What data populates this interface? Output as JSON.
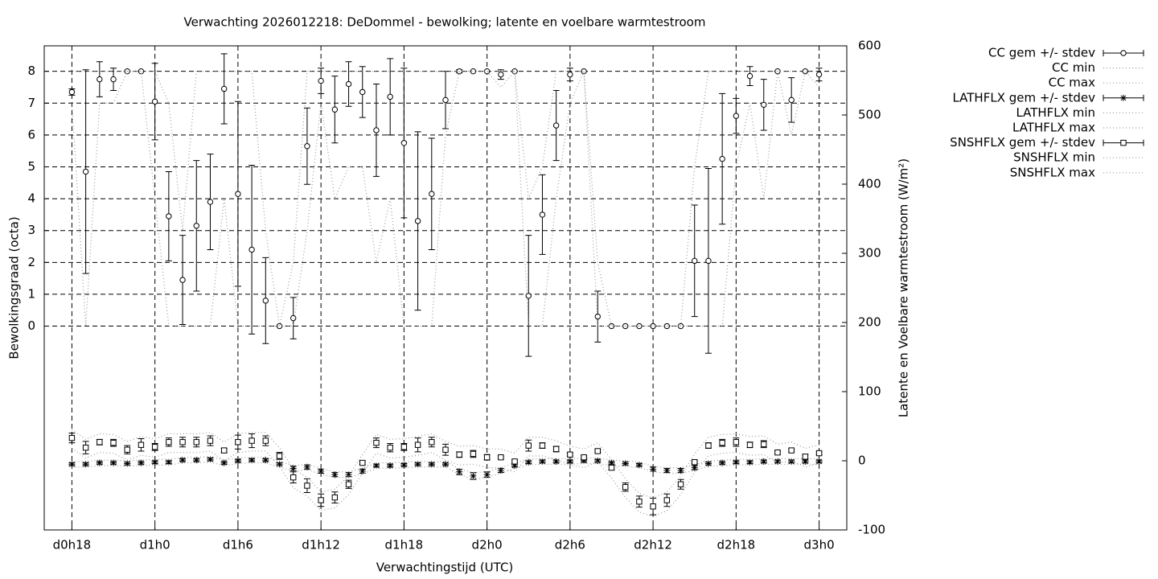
{
  "chart_data": {
    "type": "errorbar",
    "title": "Verwachting 2026012218: DeDommel - bewolking; latente en voelbare warmtestroom",
    "x_label": "Verwachtingstijd (UTC)",
    "y_label": "Bewolkingsgraad (octa)",
    "y2_label": "Latente en Voelbare warmtestroom (W/m²)",
    "grid": true,
    "legend": "outside-right",
    "xlim": [
      16,
      74
    ],
    "xticks": [
      {
        "value": 18,
        "label": "d0h18"
      },
      {
        "value": 24,
        "label": "d1h0"
      },
      {
        "value": 30,
        "label": "d1h6"
      },
      {
        "value": 36,
        "label": "d1h12"
      },
      {
        "value": 42,
        "label": "d1h18"
      },
      {
        "value": 48,
        "label": "d2h0"
      },
      {
        "value": 54,
        "label": "d2h6"
      },
      {
        "value": 60,
        "label": "d2h12"
      },
      {
        "value": 66,
        "label": "d2h18"
      },
      {
        "value": 72,
        "label": "d3h0"
      }
    ],
    "ylim": [
      -6.4,
      8.8
    ],
    "yticks": [
      0,
      1,
      2,
      3,
      4,
      5,
      6,
      7,
      8
    ],
    "y2lim": [
      -100,
      600
    ],
    "y2ticks": [
      -100,
      0,
      100,
      200,
      300,
      400,
      500,
      600
    ],
    "x": [
      18,
      19,
      20,
      21,
      22,
      23,
      24,
      25,
      26,
      27,
      28,
      29,
      30,
      31,
      32,
      33,
      34,
      35,
      36,
      37,
      38,
      39,
      40,
      41,
      42,
      43,
      44,
      45,
      46,
      47,
      48,
      49,
      50,
      51,
      52,
      53,
      54,
      55,
      56,
      57,
      58,
      59,
      60,
      61,
      62,
      63,
      64,
      65,
      66,
      67,
      68,
      69,
      70,
      71,
      72
    ],
    "series": [
      {
        "name": "CC gem +/- stdev",
        "style": "errorbar",
        "marker": "circle",
        "color": "#000000",
        "values": [
          7.35,
          4.85,
          7.75,
          7.75,
          8,
          8,
          7.05,
          3.45,
          1.45,
          3.15,
          3.9,
          7.45,
          4.15,
          2.4,
          0.8,
          0,
          0.25,
          5.65,
          7.7,
          6.8,
          7.6,
          7.35,
          6.15,
          7.2,
          5.75,
          3.3,
          4.15,
          7.1,
          8,
          8,
          8,
          7.9,
          8,
          0.95,
          3.5,
          6.3,
          7.9,
          8,
          0.3,
          0,
          0,
          0,
          0,
          0,
          0,
          2.05,
          2.05,
          5.25,
          6.6,
          7.85,
          6.95,
          8,
          7.1,
          8,
          7.9
        ],
        "errors": [
          0.1,
          3.2,
          0.55,
          0.35,
          0,
          0,
          1.2,
          1.4,
          1.4,
          2.05,
          1.5,
          1.1,
          2.9,
          2.65,
          1.35,
          0,
          0.65,
          1.2,
          0.4,
          1.05,
          0.7,
          0.8,
          1.45,
          1.2,
          2.35,
          2.8,
          1.75,
          0.9,
          0.05,
          0,
          0,
          0.15,
          0,
          1.9,
          1.25,
          1.1,
          0.2,
          0,
          0.8,
          0,
          0,
          0,
          0,
          0,
          0,
          1.75,
          2.9,
          2.05,
          0.55,
          0.3,
          0.8,
          0,
          0.7,
          0,
          0.2
        ]
      },
      {
        "name": "CC min",
        "style": "dotted",
        "color": "#999999",
        "values": [
          7,
          0,
          7,
          7,
          8,
          8,
          4,
          0,
          0,
          0,
          0,
          4,
          0,
          0,
          0,
          0,
          0,
          3,
          7,
          4,
          5,
          5,
          2,
          4,
          0,
          0,
          0,
          6,
          8,
          8,
          8,
          7.5,
          8,
          0,
          0,
          4,
          7,
          8,
          0,
          0,
          0,
          0,
          0,
          0,
          0,
          0,
          0,
          0,
          5,
          7,
          4,
          8,
          6,
          8,
          7.5
        ]
      },
      {
        "name": "CC max",
        "style": "dotted",
        "color": "#999999",
        "values": [
          8,
          8,
          8,
          8,
          8,
          8,
          8,
          7,
          3,
          8,
          8,
          8,
          8,
          8,
          3,
          0,
          2,
          8,
          8,
          8,
          8,
          8,
          8,
          8,
          8,
          8,
          8,
          8,
          8,
          8,
          8,
          8,
          8,
          4,
          5,
          8,
          8,
          8,
          2,
          0,
          0,
          0,
          0,
          0,
          0,
          5,
          8,
          8,
          8,
          8,
          8,
          8,
          8,
          8,
          8
        ]
      },
      {
        "name": "LATHFLX gem +/- stdev",
        "style": "errorbar",
        "marker": "asterisk",
        "axis": "y2",
        "color": "#000000",
        "values": [
          -5,
          -5,
          -3,
          -3,
          -4,
          -3,
          -2,
          -2,
          1,
          1,
          2,
          -3,
          0,
          1,
          1,
          -5,
          -11,
          -9,
          -15,
          -20,
          -20,
          -15,
          -7,
          -7,
          -6,
          -5,
          -5,
          -5,
          -16,
          -22,
          -20,
          -14,
          -7,
          -2,
          -1,
          -1,
          -1,
          0,
          0,
          -3,
          -4,
          -6,
          -12,
          -14,
          -14,
          -10,
          -4,
          -3,
          -2,
          -2,
          -1,
          -1,
          -1,
          -1,
          -1
        ],
        "errors": [
          2,
          2,
          2,
          2,
          2,
          2,
          2,
          2,
          2,
          2,
          2,
          2,
          2,
          2,
          2,
          2,
          3,
          3,
          3,
          3,
          3,
          3,
          2,
          2,
          2,
          2,
          2,
          2,
          4,
          5,
          4,
          3,
          2,
          2,
          2,
          2,
          2,
          2,
          2,
          2,
          2,
          2,
          3,
          3,
          3,
          3,
          2,
          2,
          2,
          2,
          2,
          2,
          2,
          2,
          2
        ]
      },
      {
        "name": "LATHFLX min",
        "style": "dotted",
        "axis": "y2",
        "color": "#999999",
        "values": [
          -9,
          -9,
          -7,
          -7,
          -8,
          -7,
          -6,
          -6,
          -3,
          -3,
          -2,
          -7,
          -4,
          -3,
          -3,
          -9,
          -15,
          -13,
          -19,
          -24,
          -24,
          -19,
          -11,
          -11,
          -10,
          -9,
          -9,
          -9,
          -20,
          -27,
          -24,
          -18,
          -11,
          -6,
          -5,
          -5,
          -5,
          -4,
          -4,
          -7,
          -8,
          -10,
          -16,
          -18,
          -18,
          -14,
          -8,
          -7,
          -6,
          -6,
          -5,
          -5,
          -5,
          -5,
          -5
        ]
      },
      {
        "name": "LATHFLX max",
        "style": "dotted",
        "axis": "y2",
        "color": "#999999",
        "values": [
          -1,
          -1,
          1,
          1,
          0,
          1,
          2,
          2,
          5,
          5,
          6,
          1,
          4,
          5,
          5,
          -1,
          -7,
          -5,
          -11,
          -16,
          -16,
          -11,
          -3,
          -3,
          -2,
          -1,
          -1,
          -1,
          -12,
          -17,
          -16,
          -10,
          -3,
          2,
          3,
          3,
          3,
          4,
          4,
          1,
          0,
          -2,
          -8,
          -10,
          -10,
          -6,
          0,
          1,
          2,
          2,
          3,
          3,
          3,
          3,
          3
        ]
      },
      {
        "name": "SNSHFLX gem +/- stdev",
        "style": "errorbar",
        "marker": "square",
        "axis": "y2",
        "color": "#000000",
        "values": [
          33,
          19,
          27,
          26,
          16,
          23,
          20,
          27,
          27,
          27,
          29,
          15,
          27,
          29,
          29,
          7,
          -24,
          -36,
          -57,
          -53,
          -34,
          -3,
          26,
          19,
          20,
          23,
          27,
          16,
          9,
          10,
          5,
          5,
          -1,
          22,
          22,
          17,
          9,
          5,
          14,
          -10,
          -38,
          -59,
          -66,
          -57,
          -34,
          -2,
          22,
          26,
          27,
          23,
          24,
          12,
          15,
          6,
          11
        ],
        "errors": [
          7,
          9,
          4,
          5,
          6,
          9,
          5,
          6,
          7,
          7,
          7,
          3,
          10,
          10,
          7,
          5,
          8,
          10,
          9,
          8,
          6,
          2,
          7,
          6,
          5,
          10,
          7,
          8,
          4,
          5,
          4,
          2,
          2,
          8,
          4,
          4,
          2,
          2,
          2,
          3,
          6,
          8,
          12,
          9,
          7,
          2,
          4,
          5,
          6,
          4,
          5,
          2,
          2,
          3,
          2
        ]
      },
      {
        "name": "SNSHFLX min",
        "style": "dotted",
        "axis": "y2",
        "color": "#999999",
        "values": [
          18,
          4,
          12,
          11,
          1,
          8,
          5,
          12,
          12,
          12,
          14,
          0,
          12,
          14,
          14,
          -8,
          -39,
          -51,
          -72,
          -68,
          -49,
          -18,
          11,
          4,
          5,
          8,
          12,
          1,
          -6,
          -5,
          -10,
          -10,
          -16,
          7,
          7,
          2,
          -6,
          -10,
          -1,
          -25,
          -53,
          -74,
          -81,
          -72,
          -49,
          -17,
          7,
          11,
          12,
          8,
          9,
          -3,
          0,
          -9,
          -4
        ]
      },
      {
        "name": "SNSHFLX max",
        "style": "dotted",
        "axis": "y2",
        "color": "#999999",
        "values": [
          45,
          31,
          39,
          38,
          28,
          35,
          32,
          39,
          39,
          39,
          41,
          27,
          39,
          41,
          41,
          19,
          -12,
          -24,
          -45,
          -41,
          -22,
          9,
          38,
          31,
          32,
          35,
          39,
          28,
          21,
          22,
          17,
          17,
          11,
          34,
          34,
          29,
          21,
          17,
          26,
          2,
          -26,
          -47,
          -54,
          -45,
          -22,
          10,
          34,
          38,
          39,
          35,
          36,
          24,
          27,
          18,
          23
        ]
      }
    ]
  }
}
